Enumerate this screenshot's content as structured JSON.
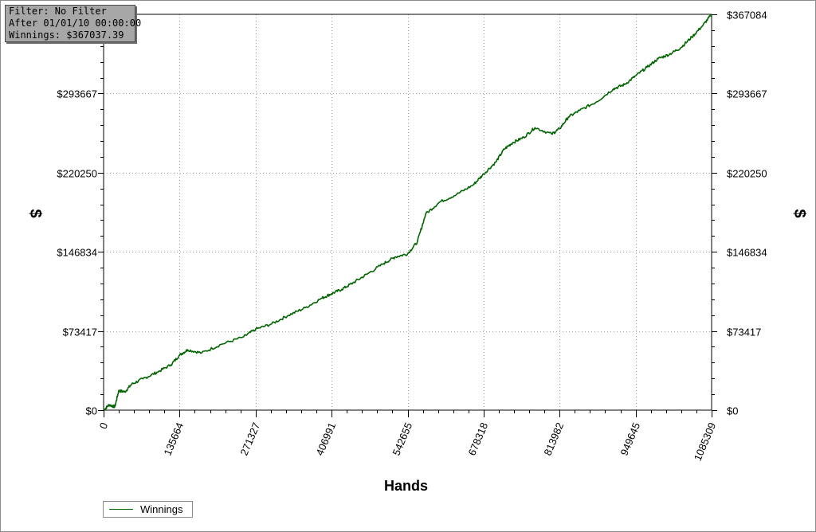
{
  "info": {
    "filter": "Filter: No Filter",
    "after": "After 01/01/10 00:00:00",
    "winnings": "Winnings: $367037.39"
  },
  "colors": {
    "series": "#006400",
    "grid": "#a0a0a0",
    "axis": "#000000"
  },
  "chart_data": {
    "type": "line",
    "xlabel": "Hands",
    "ylabel": "$",
    "xlim": [
      0,
      1085309
    ],
    "ylim": [
      0,
      367084
    ],
    "x_ticks": [
      0,
      135664,
      271327,
      406991,
      542655,
      678318,
      813982,
      949645,
      1085309
    ],
    "x_tick_labels": [
      "0",
      "135664",
      "271327",
      "406991",
      "542655",
      "678318",
      "813982",
      "949645",
      "1085309"
    ],
    "y_ticks": [
      0,
      73417,
      146834,
      220250,
      293667,
      367084
    ],
    "y_tick_labels_left": [
      "$0",
      "$73417",
      "$146834",
      "$220250",
      "$293667",
      ""
    ],
    "y_tick_labels_right": [
      "$0",
      "$73417",
      "$146834",
      "$220250",
      "$293667",
      "$367084"
    ],
    "grid": true,
    "legend_position": "bottom-left",
    "series": [
      {
        "name": "Winnings",
        "x": [
          0,
          10000,
          20000,
          27000,
          38000,
          50000,
          70000,
          95000,
          120000,
          135664,
          150000,
          175000,
          210000,
          250000,
          271327,
          300000,
          330000,
          360000,
          390000,
          406991,
          425000,
          445000,
          470000,
          500000,
          520000,
          542655,
          560000,
          575000,
          600000,
          630000,
          660000,
          678318,
          700000,
          715000,
          730000,
          750000,
          770000,
          800000,
          813982,
          830000,
          850000,
          880000,
          910000,
          930000,
          949645,
          970000,
          990000,
          1010000,
          1030000,
          1050000,
          1070000,
          1085309
        ],
        "y": [
          0,
          5000,
          3000,
          18000,
          17000,
          24000,
          29000,
          35000,
          42000,
          51000,
          56000,
          53000,
          61000,
          68000,
          75000,
          80000,
          88000,
          95000,
          104000,
          108000,
          112000,
          118000,
          126000,
          136000,
          142000,
          145000,
          156000,
          182000,
          193000,
          200000,
          209000,
          219000,
          230000,
          242000,
          248000,
          253000,
          262000,
          256000,
          261000,
          272000,
          278000,
          286000,
          298000,
          302000,
          310000,
          318000,
          326000,
          330000,
          336000,
          346000,
          357000,
          367037
        ]
      }
    ]
  }
}
